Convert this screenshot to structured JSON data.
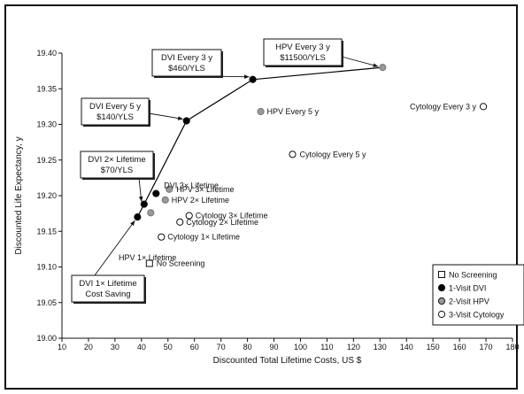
{
  "chart_data": {
    "type": "scatter",
    "title": "",
    "xlabel": "Discounted Total Lifetime Costs, US $",
    "ylabel": "Discounted Life Expectancy, y",
    "xlim": [
      10,
      180
    ],
    "ylim": [
      19.0,
      19.4
    ],
    "x_ticks": [
      "10",
      "20",
      "30",
      "40",
      "50",
      "60",
      "70",
      "80",
      "90",
      "100",
      "110",
      "120",
      "130",
      "140",
      "150",
      "160",
      "170",
      "180"
    ],
    "y_ticks": [
      "19.00",
      "19.05",
      "19.10",
      "19.15",
      "19.20",
      "19.25",
      "19.30",
      "19.35",
      "19.40"
    ],
    "grid": false,
    "legend_position": "bottom-right",
    "legend": [
      {
        "label": "No Screening",
        "marker": "square-open"
      },
      {
        "label": "1-Visit DVI",
        "marker": "circle-filled-black"
      },
      {
        "label": "2-Visit HPV",
        "marker": "circle-filled-gray"
      },
      {
        "label": "3-Visit Cytology",
        "marker": "circle-open"
      }
    ],
    "colors": {
      "dvi": "#000000",
      "hpv": "#999999",
      "cytology": "#ffffff",
      "line": "#000000"
    },
    "efficient_frontier": [
      {
        "x": 38.5,
        "y": 19.17
      },
      {
        "x": 41,
        "y": 19.188
      },
      {
        "x": 57,
        "y": 19.305
      },
      {
        "x": 82,
        "y": 19.363
      },
      {
        "x": 131,
        "y": 19.38
      }
    ],
    "points": [
      {
        "group": "none",
        "x": 43,
        "y": 19.105,
        "label": "No Screening"
      },
      {
        "group": "dvi",
        "x": 38.5,
        "y": 19.17,
        "label": ""
      },
      {
        "group": "dvi",
        "x": 41,
        "y": 19.188,
        "label": ""
      },
      {
        "group": "dvi",
        "x": 45.5,
        "y": 19.203,
        "label": "DVI 3× Lifetime"
      },
      {
        "group": "dvi",
        "x": 57,
        "y": 19.305,
        "label": ""
      },
      {
        "group": "dvi",
        "x": 82,
        "y": 19.363,
        "label": ""
      },
      {
        "group": "hpv",
        "x": 43.5,
        "y": 19.176,
        "label": ""
      },
      {
        "group": "hpv",
        "x": 50.5,
        "y": 19.209,
        "label": "HPV 3× Lifetime"
      },
      {
        "group": "hpv",
        "x": 49,
        "y": 19.194,
        "label": "HPV 2× Lifetime"
      },
      {
        "group": "hpv",
        "x": 85,
        "y": 19.318,
        "label": "HPV Every 5 y"
      },
      {
        "group": "hpv",
        "x": 131,
        "y": 19.38,
        "label": ""
      },
      {
        "group": "cytology",
        "x": 47.5,
        "y": 19.142,
        "label": "Cytology 1× Lifetime"
      },
      {
        "group": "cytology",
        "x": 54.5,
        "y": 19.163,
        "label": "Cytology 2× Lifetime"
      },
      {
        "group": "cytology",
        "x": 58,
        "y": 19.172,
        "label": "Cytology 3× Lifetime"
      },
      {
        "group": "cytology",
        "x": 97,
        "y": 19.258,
        "label": "Cytology Every 5 y"
      },
      {
        "group": "cytology",
        "x": 169,
        "y": 19.325,
        "label": "Cytology Every 3 y"
      }
    ],
    "plain_labels": [
      {
        "text": "HPV 1× Lifetime"
      }
    ],
    "callouts": [
      {
        "lines": [
          "DVI 1× Lifetime",
          "Cost Saving"
        ]
      },
      {
        "lines": [
          "DVI 2× Lifetime",
          "$70/YLS"
        ]
      },
      {
        "lines": [
          "DVI Every 5 y",
          "$140/YLS"
        ]
      },
      {
        "lines": [
          "DVI Every 3 y",
          "$460/YLS"
        ]
      },
      {
        "lines": [
          "HPV Every 3 y",
          "$11500/YLS"
        ]
      }
    ]
  }
}
